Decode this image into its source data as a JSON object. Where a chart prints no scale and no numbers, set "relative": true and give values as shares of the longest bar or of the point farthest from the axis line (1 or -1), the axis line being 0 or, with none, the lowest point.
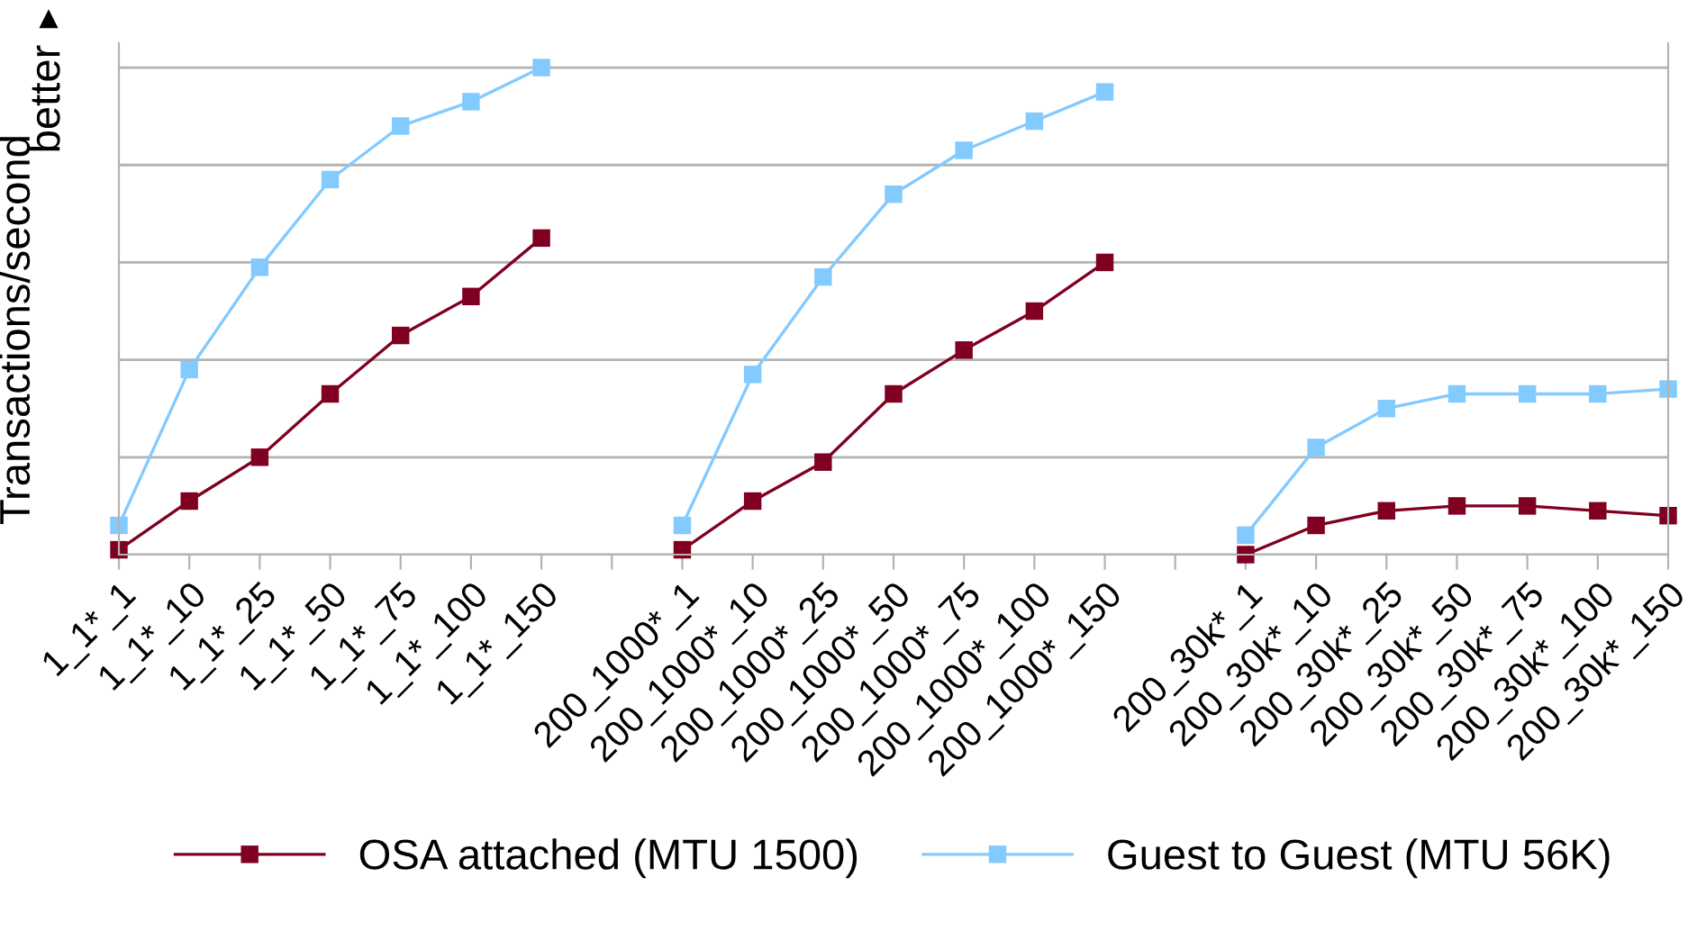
{
  "chart_data": {
    "type": "line",
    "relative": true,
    "ylabel": "Transactions/second",
    "annotations": [
      "better",
      "▲"
    ],
    "categories": [
      "1_1*_1",
      "1_1*_10",
      "1_1*_25",
      "1_1*_50",
      "1_1*_75",
      "1_1*_100",
      "1_1*_150",
      null,
      "200_1000*_1",
      "200_1000*_10",
      "200_1000*_25",
      "200_1000*_50",
      "200_1000*_75",
      "200_1000*_100",
      "200_1000*_150",
      null,
      "200_30k*_1",
      "200_30k*_10",
      "200_30k*_25",
      "200_30k*_50",
      "200_30k*_75",
      "200_30k*_100",
      "200_30k*_150"
    ],
    "series": [
      {
        "name": "OSA attached (MTU 1500)",
        "color": "#7f0020",
        "values": [
          0.01,
          0.11,
          0.2,
          0.33,
          0.45,
          0.53,
          0.65,
          null,
          0.01,
          0.11,
          0.19,
          0.33,
          0.42,
          0.5,
          0.6,
          null,
          0.0,
          0.06,
          0.09,
          0.1,
          0.1,
          0.09,
          0.08
        ]
      },
      {
        "name": "Guest to Guest (MTU 56K)",
        "color": "#83caff",
        "values": [
          0.06,
          0.38,
          0.59,
          0.77,
          0.88,
          0.93,
          1.0,
          null,
          0.06,
          0.37,
          0.57,
          0.74,
          0.83,
          0.89,
          0.95,
          null,
          0.04,
          0.22,
          0.3,
          0.33,
          0.33,
          0.33,
          0.34
        ]
      }
    ],
    "grid": "y",
    "legend": "bottom",
    "marker": "square",
    "line_style": "solid",
    "tick_labels": "x"
  }
}
